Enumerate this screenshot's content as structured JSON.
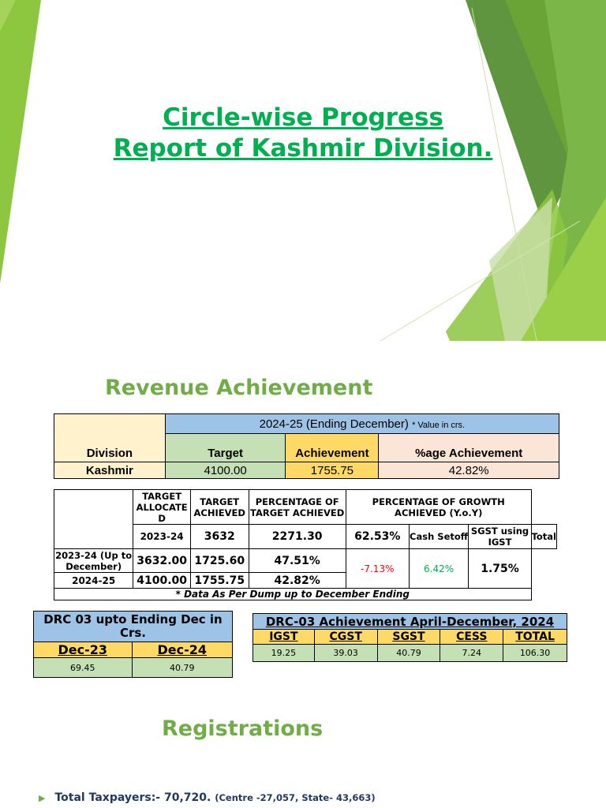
{
  "title": {
    "line1": "Circle-wise Progress",
    "line2": "Report of Kashmir Division."
  },
  "revenue": {
    "heading": "Revenue Achievement",
    "table": {
      "period": "2024-25 (Ending December)",
      "note": "* Value in crs.",
      "col_division": "Division",
      "col_target": "Target",
      "col_achievement": "Achievement",
      "col_pct": "%age Achievement",
      "row": {
        "division": "Kashmir",
        "target": "4100.00",
        "achievement": "1755.75",
        "pct": "42.82%"
      }
    }
  },
  "growth_table": {
    "headers": {
      "target_allocated": "TARGET ALLOCATE D",
      "target_achieved": "TARGET ACHIEVED",
      "pct_target": "PERCENTAGE OF TARGET ACHIEVED",
      "pct_growth": "PERCENTAGE OF GROWTH ACHIEVED (Y.o.Y)",
      "cash_setoff": "Cash Setoff",
      "sgst_igst": "SGST using IGST",
      "total": "Total"
    },
    "rows": [
      {
        "year": "2023-24",
        "allocated": "3632",
        "achieved": "2271.30",
        "pct": "62.53%"
      },
      {
        "year": "2023-24 (Up to December)",
        "allocated": "3632.00",
        "achieved": "1725.60",
        "pct": "47.51%"
      },
      {
        "year": "2024-25",
        "allocated": "4100.00",
        "achieved": "1755.75",
        "pct": "42.82%"
      }
    ],
    "growth": {
      "cash_setoff": "-7.13%",
      "sgst_igst": "6.42%",
      "total": "1.75%"
    },
    "footnote": "* Data As Per Dump up to December Ending"
  },
  "drc_compare": {
    "title": "DRC 03 upto Ending Dec in Crs.",
    "cols": [
      "Dec-23",
      "Dec-24"
    ],
    "values": [
      "69.45",
      "40.79"
    ]
  },
  "drc_achievement": {
    "title": "DRC-03 Achievement April-December, 2024",
    "cols": [
      "IGST",
      "CGST",
      "SGST",
      "CESS",
      "TOTAL"
    ],
    "values": [
      "19.25",
      "39.03",
      "40.79",
      "7.24",
      "106.30"
    ]
  },
  "registrations": {
    "heading": "Registrations",
    "bullet_main": "Total Taxpayers:- 70,720.",
    "bullet_detail": "(Centre -27,057, State- 43,663)"
  },
  "colors": {
    "title_green": "#00b050",
    "section_green": "#70ad47",
    "blue_header": "#9dc3e6",
    "light_green": "#c5e0b4",
    "cream": "#fff2cc",
    "yellow": "#ffd966",
    "peach": "#fbe5d6",
    "negative": "#ff0000",
    "bullet_text": "#1f3864"
  }
}
